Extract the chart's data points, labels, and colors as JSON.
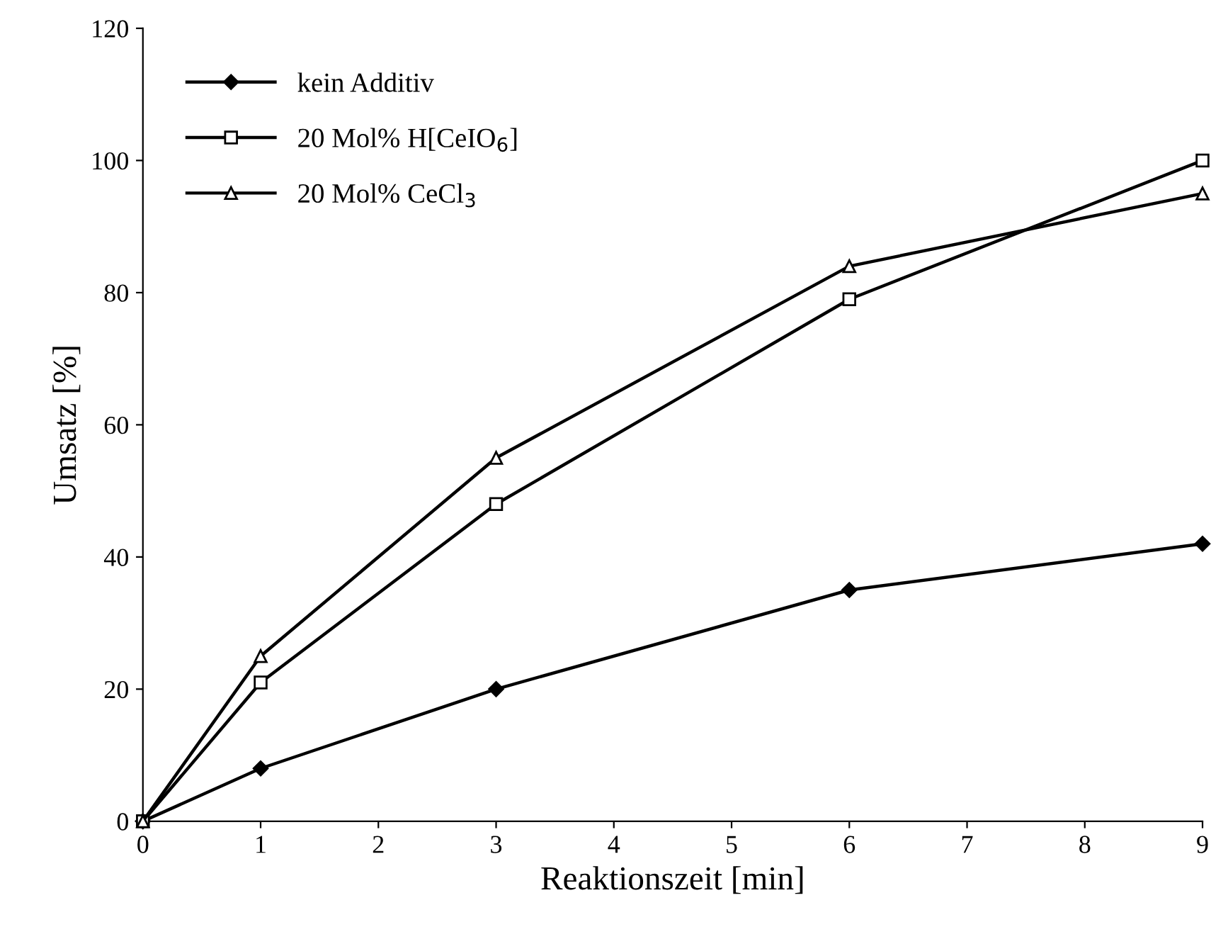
{
  "chart_data": {
    "type": "line",
    "xlabel": "Reaktionszeit [min]",
    "ylabel": "Umsatz [%]",
    "x": [
      0,
      1,
      3,
      6,
      9
    ],
    "xlim": [
      0,
      9
    ],
    "xticks": [
      0,
      1,
      2,
      3,
      4,
      5,
      6,
      7,
      8,
      9
    ],
    "ylim": [
      0,
      120
    ],
    "yticks": [
      0,
      20,
      40,
      60,
      80,
      100,
      120
    ],
    "grid": false,
    "legend": "top left",
    "series": [
      {
        "name": "kein Additiv",
        "color": "#000000",
        "marker": "diamond",
        "values": [
          0,
          8,
          20,
          35,
          42
        ]
      },
      {
        "name": "20 Mol% H[CeIO$_{6}$]",
        "color": "#000000",
        "marker": "square",
        "values": [
          0,
          21,
          48,
          79,
          100
        ]
      },
      {
        "name": "20 Mol% CeCl$_{3}$",
        "color": "#000000",
        "marker": "triangle",
        "values": [
          0,
          25,
          55,
          84,
          95
        ]
      }
    ]
  }
}
